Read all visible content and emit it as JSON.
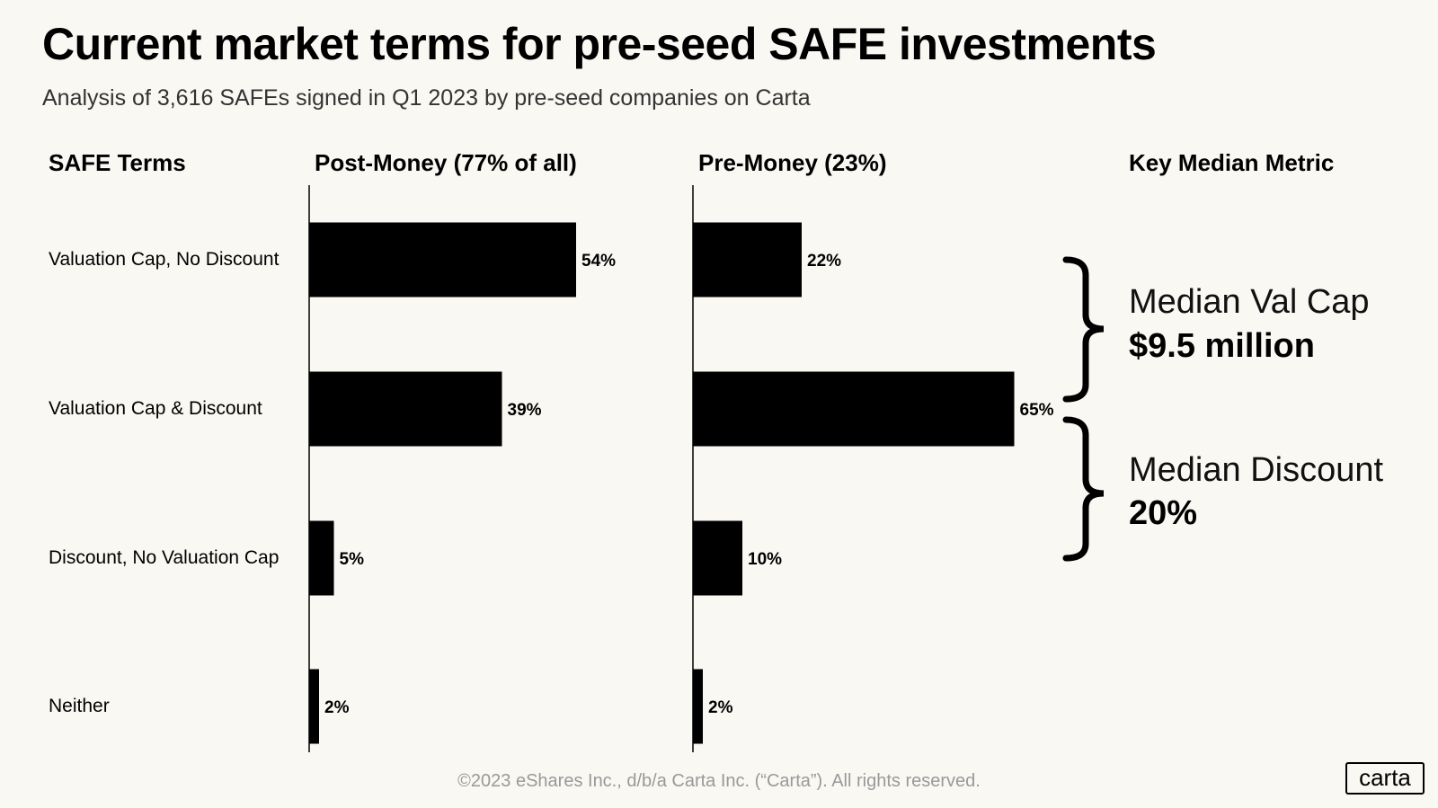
{
  "title": "Current market terms for pre-seed SAFE investments",
  "subtitle": "Analysis of 3,616 SAFEs signed in Q1 2023 by pre-seed companies on Carta",
  "headers": {
    "terms": "SAFE Terms",
    "post": "Post-Money (77% of all)",
    "pre": "Pre-Money (23%)",
    "metric": "Key Median Metric"
  },
  "chart_data": [
    {
      "type": "bar",
      "orientation": "horizontal",
      "title": "Post-Money (77% of all)",
      "categories": [
        "Valuation Cap, No Discount",
        "Valuation Cap & Discount",
        "Discount, No Valuation Cap",
        "Neither"
      ],
      "values": [
        54,
        39,
        5,
        2
      ],
      "data_labels": [
        "54%",
        "39%",
        "5%",
        "2%"
      ]
    },
    {
      "type": "bar",
      "orientation": "horizontal",
      "title": "Pre-Money (23%)",
      "categories": [
        "Valuation Cap, No Discount",
        "Valuation Cap & Discount",
        "Discount, No Valuation Cap",
        "Neither"
      ],
      "values": [
        22,
        65,
        10,
        2
      ],
      "data_labels": [
        "22%",
        "65%",
        "10%",
        "2%"
      ]
    }
  ],
  "metrics": [
    {
      "label": "Median Val Cap",
      "value": "$9.5 million"
    },
    {
      "label": "Median Discount",
      "value": "20%"
    }
  ],
  "footer": "©2023 eShares Inc., d/b/a Carta Inc. (“Carta”). All rights reserved.",
  "logo": "carta",
  "colors": {
    "background": "#faf8f3",
    "bar": "#000000"
  }
}
